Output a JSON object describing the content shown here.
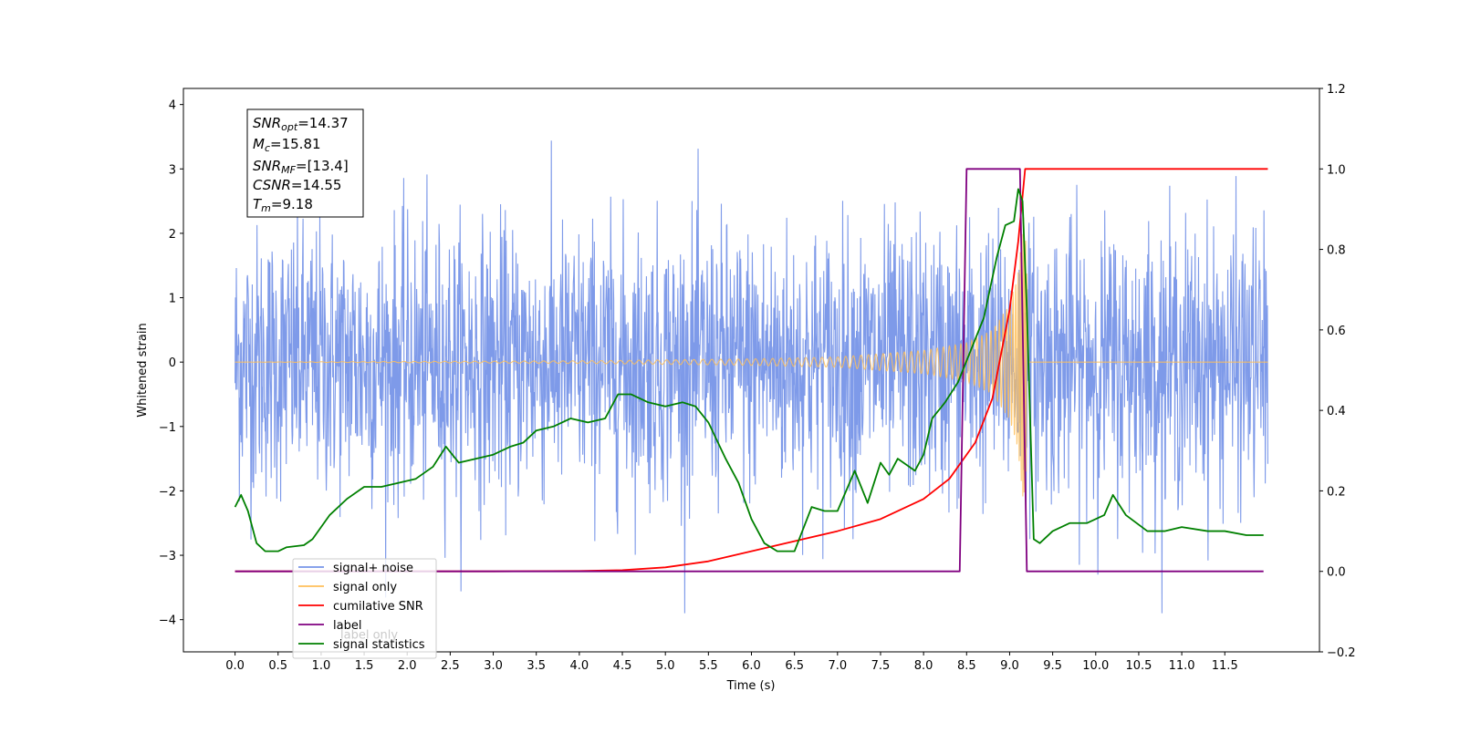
{
  "chart_data": {
    "type": "line",
    "title": "",
    "xlabel": "Time (s)",
    "ylabel": "Whitened strain",
    "xlim": [
      -0.6,
      12.6
    ],
    "ylim": [
      -4.5,
      4.25
    ],
    "y2lim": [
      -0.2,
      1.2
    ],
    "grid": false,
    "legend_position": "bottom-left",
    "x_ticks": [
      "0.0",
      "0.5",
      "1.0",
      "1.5",
      "2.0",
      "2.5",
      "3.0",
      "3.5",
      "4.0",
      "4.5",
      "5.0",
      "5.5",
      "6.0",
      "6.5",
      "7.0",
      "7.5",
      "8.0",
      "8.5",
      "9.0",
      "9.5",
      "10.0",
      "10.5",
      "11.0",
      "11.5"
    ],
    "y_ticks": [
      "−4",
      "−3",
      "−2",
      "−1",
      "0",
      "1",
      "2",
      "3",
      "4"
    ],
    "y2_ticks": [
      "−0.2",
      "0.0",
      "0.2",
      "0.4",
      "0.6",
      "0.8",
      "1.0",
      "1.2"
    ],
    "stats_box": {
      "snr_opt": {
        "base": "SNR",
        "sub": "opt",
        "value": "=14.37"
      },
      "mc": {
        "base": "M",
        "sub": "c",
        "value": "=15.81"
      },
      "snr_mf": {
        "base": "SNR",
        "sub": "MF",
        "value": "=[13.4]"
      },
      "csnr": {
        "base": "CSNR",
        "sub": "",
        "value": "=14.55"
      },
      "tm": {
        "base": "T",
        "sub": "m",
        "value": "=9.18"
      }
    },
    "series": [
      {
        "name": "signal+ noise",
        "color": "#7795e8",
        "axis": "left",
        "description": "noisy whitened strain, roughly within -3.5 to 3.5 with peaks up to 3.9",
        "x_range": [
          0.0,
          12.0
        ],
        "amplitude_envelope": [
          2.8,
          3.9
        ]
      },
      {
        "name": "signal only",
        "color": "#ffbf59",
        "axis": "left",
        "description": "chirp signal, amplitude growing until merger at ~9.18 s",
        "x_range": [
          0.0,
          12.0
        ],
        "envelope_points": [
          [
            0.0,
            0.0
          ],
          [
            4.0,
            0.02
          ],
          [
            6.0,
            0.05
          ],
          [
            7.0,
            0.08
          ],
          [
            8.0,
            0.18
          ],
          [
            8.5,
            0.3
          ],
          [
            8.8,
            0.5
          ],
          [
            9.0,
            0.9
          ],
          [
            9.1,
            1.4
          ],
          [
            9.18,
            2.5
          ],
          [
            9.22,
            0.0
          ],
          [
            12.0,
            0.0
          ]
        ]
      },
      {
        "name": "cumilative SNR",
        "color": "#ff0000",
        "axis": "right",
        "points": [
          [
            0.0,
            0.0
          ],
          [
            3.0,
            0.0
          ],
          [
            4.0,
            0.001
          ],
          [
            4.5,
            0.003
          ],
          [
            5.0,
            0.01
          ],
          [
            5.5,
            0.025
          ],
          [
            6.0,
            0.05
          ],
          [
            6.5,
            0.075
          ],
          [
            7.0,
            0.1
          ],
          [
            7.5,
            0.13
          ],
          [
            8.0,
            0.18
          ],
          [
            8.3,
            0.23
          ],
          [
            8.6,
            0.32
          ],
          [
            8.8,
            0.43
          ],
          [
            9.0,
            0.65
          ],
          [
            9.1,
            0.82
          ],
          [
            9.18,
            1.0
          ],
          [
            12.0,
            1.0
          ]
        ]
      },
      {
        "name": "label",
        "color": "#800080",
        "axis": "right",
        "points": [
          [
            0.0,
            0.0
          ],
          [
            8.42,
            0.0
          ],
          [
            8.5,
            1.0
          ],
          [
            9.12,
            1.0
          ],
          [
            9.2,
            0.0
          ],
          [
            11.95,
            0.0
          ]
        ]
      },
      {
        "name": "label only",
        "color": "#800080",
        "axis": "right",
        "hidden_in_legend": true,
        "points": []
      },
      {
        "name": "signal statistics",
        "color": "#008000",
        "axis": "right",
        "points": [
          [
            0.0,
            0.16
          ],
          [
            0.07,
            0.19
          ],
          [
            0.15,
            0.15
          ],
          [
            0.25,
            0.07
          ],
          [
            0.35,
            0.05
          ],
          [
            0.5,
            0.05
          ],
          [
            0.6,
            0.06
          ],
          [
            0.8,
            0.065
          ],
          [
            0.9,
            0.08
          ],
          [
            1.1,
            0.14
          ],
          [
            1.3,
            0.18
          ],
          [
            1.5,
            0.21
          ],
          [
            1.7,
            0.21
          ],
          [
            1.9,
            0.22
          ],
          [
            2.1,
            0.23
          ],
          [
            2.3,
            0.26
          ],
          [
            2.45,
            0.31
          ],
          [
            2.6,
            0.27
          ],
          [
            2.8,
            0.28
          ],
          [
            3.0,
            0.29
          ],
          [
            3.2,
            0.31
          ],
          [
            3.35,
            0.32
          ],
          [
            3.5,
            0.35
          ],
          [
            3.7,
            0.36
          ],
          [
            3.9,
            0.38
          ],
          [
            4.1,
            0.37
          ],
          [
            4.3,
            0.38
          ],
          [
            4.45,
            0.44
          ],
          [
            4.6,
            0.44
          ],
          [
            4.8,
            0.42
          ],
          [
            5.0,
            0.41
          ],
          [
            5.2,
            0.42
          ],
          [
            5.35,
            0.41
          ],
          [
            5.5,
            0.37
          ],
          [
            5.7,
            0.28
          ],
          [
            5.85,
            0.22
          ],
          [
            6.0,
            0.13
          ],
          [
            6.15,
            0.07
          ],
          [
            6.3,
            0.05
          ],
          [
            6.5,
            0.05
          ],
          [
            6.7,
            0.16
          ],
          [
            6.85,
            0.15
          ],
          [
            7.0,
            0.15
          ],
          [
            7.2,
            0.25
          ],
          [
            7.35,
            0.17
          ],
          [
            7.5,
            0.27
          ],
          [
            7.6,
            0.24
          ],
          [
            7.7,
            0.28
          ],
          [
            7.9,
            0.25
          ],
          [
            8.0,
            0.29
          ],
          [
            8.1,
            0.38
          ],
          [
            8.25,
            0.42
          ],
          [
            8.4,
            0.47
          ],
          [
            8.55,
            0.55
          ],
          [
            8.7,
            0.63
          ],
          [
            8.85,
            0.78
          ],
          [
            8.95,
            0.86
          ],
          [
            9.05,
            0.87
          ],
          [
            9.1,
            0.95
          ],
          [
            9.15,
            0.92
          ],
          [
            9.2,
            0.65
          ],
          [
            9.28,
            0.08
          ],
          [
            9.35,
            0.07
          ],
          [
            9.5,
            0.1
          ],
          [
            9.7,
            0.12
          ],
          [
            9.9,
            0.12
          ],
          [
            10.1,
            0.14
          ],
          [
            10.2,
            0.19
          ],
          [
            10.35,
            0.14
          ],
          [
            10.6,
            0.1
          ],
          [
            10.8,
            0.1
          ],
          [
            11.0,
            0.11
          ],
          [
            11.3,
            0.1
          ],
          [
            11.5,
            0.1
          ],
          [
            11.75,
            0.09
          ],
          [
            11.95,
            0.09
          ]
        ]
      }
    ],
    "legend": [
      {
        "label": "signal+ noise",
        "color": "#7795e8"
      },
      {
        "label": "signal only",
        "color": "#ffbf59"
      },
      {
        "label": "cumilative SNR",
        "color": "#ff0000"
      },
      {
        "label": "label",
        "color": "#800080"
      },
      {
        "label": "signal statistics",
        "color": "#008000"
      }
    ],
    "legend_ghost": [
      {
        "label": "label only"
      }
    ]
  }
}
